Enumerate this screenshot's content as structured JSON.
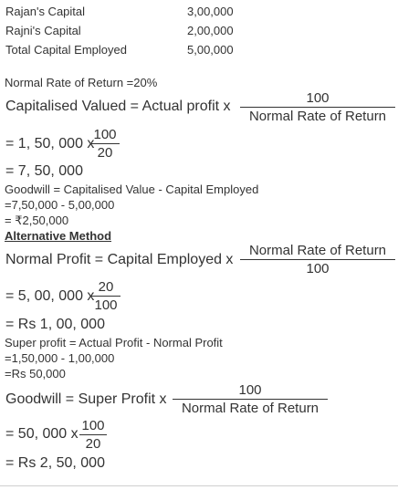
{
  "capital_table": {
    "rows": [
      {
        "label": "Rajan's Capital",
        "value": "3,00,000"
      },
      {
        "label": "Rajni's Capital",
        "value": "2,00,000"
      },
      {
        "label": "Total Capital Employed",
        "value": "5,00,000"
      }
    ]
  },
  "normal_rate": "Normal Rate of Return =20%",
  "eq1": {
    "lhs": "Capitalised Valued = Actual profit x",
    "num": "100",
    "den": "Normal Rate of Return"
  },
  "eq2": {
    "lhs": "= 1, 50, 000 x",
    "num": "100",
    "den": "20"
  },
  "eq3": "= 7, 50, 000",
  "goodwill_lines": [
    "Goodwill = Capitalised Value - Capital Employed",
    "=7,50,000 - 5,00,000",
    "= ₹2,50,000"
  ],
  "alt_heading": "Alternative Method",
  "eq4": {
    "lhs": "Normal Profit = Capital Employed x",
    "num": "Normal Rate of Return",
    "den": "100"
  },
  "eq5": {
    "lhs": "= 5, 00, 000 x",
    "num": "20",
    "den": "100"
  },
  "eq6": "= Rs 1, 00, 000",
  "super_lines": [
    "Super profit = Actual Profit - Normal Profit",
    "=1,50,000 - 1,00,000",
    "=Rs 50,000"
  ],
  "eq7": {
    "lhs": "Goodwill = Super Profit x",
    "num": "100",
    "den": "Normal Rate of Return"
  },
  "eq8": {
    "lhs": "= 50, 000 x",
    "num": "100",
    "den": "20"
  },
  "eq9": "= Rs 2, 50, 000"
}
